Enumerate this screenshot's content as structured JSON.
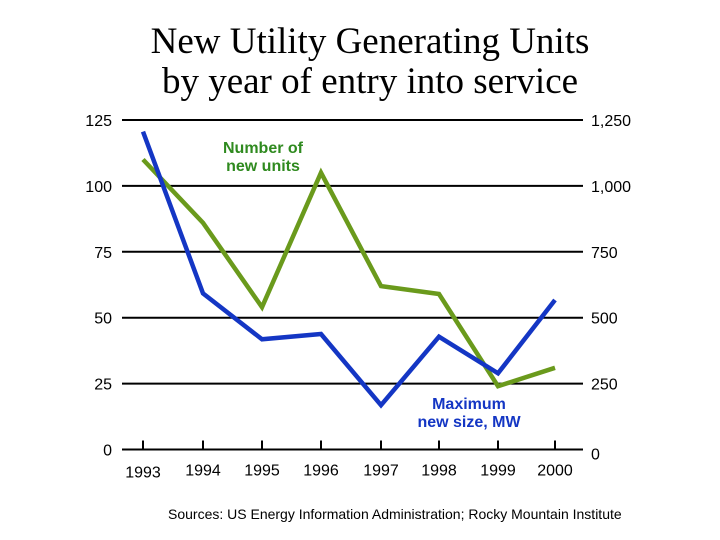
{
  "chart_data": {
    "type": "line",
    "title": "New Utility Generating Units by year of entry into service",
    "title_lines": [
      "New Utility Generating Units",
      "by year of entry into service"
    ],
    "x": [
      1993,
      1994,
      1995,
      1996,
      1997,
      1998,
      1999,
      2000
    ],
    "x_tick_labels": [
      "1993",
      "1994",
      "1995",
      "1996",
      "1997",
      "1998",
      "1999",
      "2000"
    ],
    "left_axis": {
      "ylim": [
        0,
        125
      ],
      "ticks": [
        0,
        25,
        50,
        75,
        100,
        125
      ],
      "tick_labels": [
        "0",
        "25",
        "50",
        "75",
        "100",
        "125"
      ]
    },
    "right_axis": {
      "ylim": [
        0,
        1250
      ],
      "ticks": [
        0,
        250,
        500,
        750,
        1000,
        1250
      ],
      "tick_labels": [
        "0",
        "250",
        "500",
        "750",
        "1,000",
        "1,250"
      ]
    },
    "grid": true,
    "series": [
      {
        "name": "Number of new units",
        "name_lines": [
          "Number of",
          "new units"
        ],
        "axis": "left",
        "color": "#6a9a1c",
        "label_color": "#2f8a1f",
        "values": [
          110,
          86,
          54,
          105,
          62,
          59,
          24,
          31
        ]
      },
      {
        "name": "Maximum new size, MW",
        "name_lines": [
          "Maximum",
          "new size, MW"
        ],
        "axis": "right",
        "color": "#1436c4",
        "label_color": "#1436c4",
        "values": [
          1206,
          592,
          418,
          438,
          168,
          428,
          289,
          567
        ]
      }
    ],
    "source": "Sources: US Energy Information Administration; Rocky Mountain Institute"
  }
}
